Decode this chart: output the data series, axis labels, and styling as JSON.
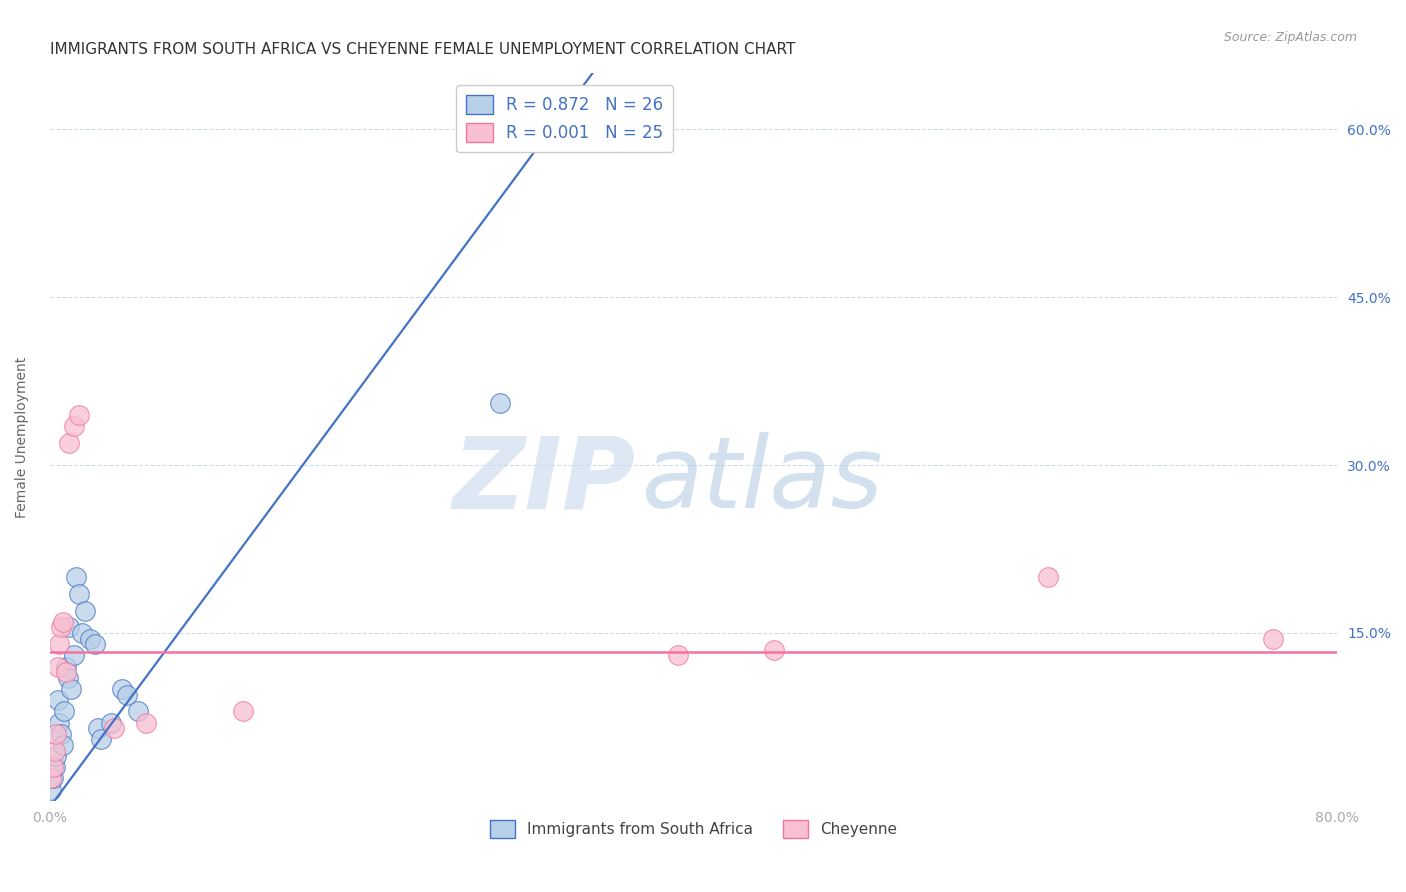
{
  "title": "IMMIGRANTS FROM SOUTH AFRICA VS CHEYENNE FEMALE UNEMPLOYMENT CORRELATION CHART",
  "source": "Source: ZipAtlas.com",
  "ylabel": "Female Unemployment",
  "xlim": [
    0.0,
    0.8
  ],
  "ylim": [
    0.0,
    0.65
  ],
  "xticks": [
    0.0,
    0.1,
    0.2,
    0.3,
    0.4,
    0.5,
    0.6,
    0.7,
    0.8
  ],
  "yticks_right": [
    0.0,
    0.15,
    0.3,
    0.45,
    0.6
  ],
  "yticklabels_right": [
    "",
    "15.0%",
    "30.0%",
    "45.0%",
    "60.0%"
  ],
  "watermark_zip": "ZIP",
  "watermark_atlas": "atlas",
  "legend_labels_bottom": [
    "Immigrants from South Africa",
    "Cheyenne"
  ],
  "blue_scatter_x": [
    0.001,
    0.002,
    0.003,
    0.004,
    0.005,
    0.006,
    0.007,
    0.008,
    0.009,
    0.01,
    0.011,
    0.012,
    0.013,
    0.015,
    0.016,
    0.018,
    0.02,
    0.022,
    0.025,
    0.028,
    0.03,
    0.032,
    0.038,
    0.045,
    0.048,
    0.055,
    0.28
  ],
  "blue_scatter_y": [
    0.01,
    0.02,
    0.03,
    0.04,
    0.09,
    0.07,
    0.06,
    0.05,
    0.08,
    0.12,
    0.11,
    0.155,
    0.1,
    0.13,
    0.2,
    0.185,
    0.15,
    0.17,
    0.145,
    0.14,
    0.065,
    0.055,
    0.07,
    0.1,
    0.095,
    0.08,
    0.355
  ],
  "pink_scatter_x": [
    0.001,
    0.002,
    0.003,
    0.004,
    0.005,
    0.006,
    0.007,
    0.008,
    0.01,
    0.012,
    0.015,
    0.018,
    0.04,
    0.06,
    0.12,
    0.39,
    0.45,
    0.62,
    0.76
  ],
  "pink_scatter_y": [
    0.02,
    0.03,
    0.045,
    0.06,
    0.12,
    0.14,
    0.155,
    0.16,
    0.115,
    0.32,
    0.335,
    0.345,
    0.065,
    0.07,
    0.08,
    0.13,
    0.135,
    0.2,
    0.145
  ],
  "blue_line_x": [
    -0.01,
    0.8
  ],
  "blue_line_y": [
    -0.025,
    1.55
  ],
  "pink_line_y": 0.133,
  "blue_color": "#4472c4",
  "pink_color": "#f472a0",
  "blue_scatter_color": "#b8d0e8",
  "pink_scatter_color": "#f8c0d0",
  "background_color": "#ffffff",
  "grid_color": "#d0dce8",
  "title_fontsize": 11,
  "axis_label_fontsize": 10,
  "tick_fontsize": 10
}
